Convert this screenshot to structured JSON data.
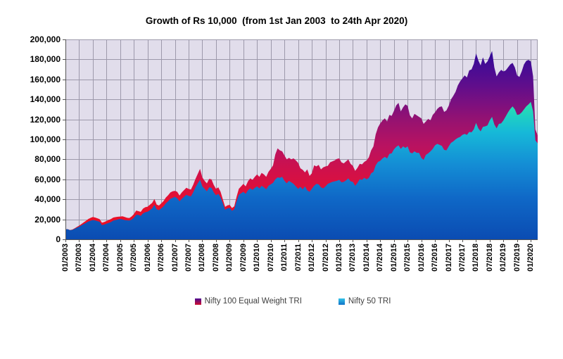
{
  "title": "Growth of Rs 10,000  (from 1st Jan 2003  to 24th Apr 2020)",
  "legend": {
    "items": [
      {
        "label": "Nifty 100 Equal Weight TRI",
        "swatch_top": "#4A0B94",
        "swatch_bottom": "#D00E2E"
      },
      {
        "label": "Nifty 50 TRI",
        "swatch_top": "#33C4E8",
        "swatch_bottom": "#1172C8"
      }
    ]
  },
  "chart_data": {
    "type": "area",
    "title": "Growth of Rs 10,000 (from 1st Jan 2003 to 24th Apr 2020)",
    "x_start": "01/2003",
    "x_end": "04/2020",
    "x_frequency": "monthly",
    "x_tick_labels": [
      "01/2003",
      "07/2003",
      "01/2004",
      "07/2004",
      "01/2005",
      "07/2005",
      "01/2006",
      "07/2006",
      "01/2007",
      "07/2007",
      "01/2008",
      "07/2008",
      "01/2009",
      "07/2009",
      "01/2010",
      "07/2010",
      "01/2011",
      "07/2011",
      "01/2012",
      "07/2012",
      "01/2013",
      "07/2013",
      "01/2014",
      "07/2014",
      "01/2015",
      "07/2015",
      "01/2016",
      "07/2016",
      "01/2017",
      "07/2017",
      "01/2018",
      "07/2018",
      "01/2019",
      "07/2019",
      "01/2020"
    ],
    "x_tick_every_months": 6,
    "ylim": [
      0,
      200000
    ],
    "y_step": 20000,
    "y_tick_labels": [
      "0",
      "20,000",
      "40,000",
      "60,000",
      "80,000",
      "100,000",
      "120,000",
      "140,000",
      "160,000",
      "180,000",
      "200,000"
    ],
    "plot_bg": "#E1DDEB",
    "grid_color": "#9D99AB",
    "axis_color": "#555555",
    "grid": true,
    "legend_position": "bottom",
    "series": [
      {
        "name": "Nifty 100 Equal Weight TRI",
        "gradient": [
          {
            "offset": 0.0,
            "color": "#EF0F1C"
          },
          {
            "offset": 0.2,
            "color": "#E61031"
          },
          {
            "offset": 0.35,
            "color": "#D21048"
          },
          {
            "offset": 0.5,
            "color": "#B81261"
          },
          {
            "offset": 0.62,
            "color": "#99126F"
          },
          {
            "offset": 0.72,
            "color": "#7C107F"
          },
          {
            "offset": 0.82,
            "color": "#5F0E8C"
          },
          {
            "offset": 0.92,
            "color": "#450B94"
          },
          {
            "offset": 1.0,
            "color": "#2F0798"
          }
        ],
        "values": [
          10000,
          10150,
          9300,
          9800,
          11000,
          12400,
          13700,
          15300,
          17000,
          18600,
          20300,
          21500,
          22400,
          21800,
          21000,
          20200,
          16600,
          17300,
          18400,
          19400,
          20400,
          21800,
          22300,
          22600,
          22800,
          23100,
          22400,
          21600,
          21300,
          22900,
          25300,
          28800,
          28200,
          27500,
          30700,
          32100,
          32700,
          34600,
          36400,
          40300,
          34800,
          33800,
          36000,
          38300,
          41800,
          44100,
          46900,
          48100,
          48500,
          47500,
          43800,
          46900,
          49300,
          51600,
          50400,
          49800,
          54600,
          60500,
          65500,
          70500,
          62000,
          58500,
          56000,
          60500,
          60000,
          54500,
          50500,
          52000,
          47500,
          40000,
          32500,
          34000,
          34500,
          31300,
          33000,
          42500,
          50500,
          53000,
          55500,
          53000,
          58000,
          61000,
          59500,
          62500,
          65000,
          62500,
          66500,
          65000,
          62500,
          67500,
          70500,
          74000,
          85000,
          91000,
          89000,
          88000,
          84000,
          80000,
          81500,
          80000,
          81000,
          79000,
          76500,
          71000,
          69500,
          67000,
          70000,
          63500,
          66000,
          74000,
          73000,
          74500,
          70000,
          72000,
          73000,
          73500,
          77000,
          78000,
          79000,
          80500,
          81000,
          77000,
          76000,
          78000,
          80000,
          75500,
          73500,
          68500,
          71500,
          75500,
          75000,
          77500,
          79000,
          82000,
          89000,
          93000,
          105000,
          112000,
          116000,
          119000,
          121000,
          118000,
          124500,
          123500,
          128500,
          134000,
          136500,
          128000,
          132000,
          135000,
          133500,
          124000,
          121000,
          125500,
          124000,
          122500,
          121000,
          115500,
          118000,
          120500,
          119000,
          124500,
          127000,
          130500,
          132500,
          133000,
          127500,
          129000,
          133500,
          140000,
          143500,
          147500,
          154000,
          158000,
          161000,
          164000,
          162000,
          169000,
          170000,
          175500,
          186000,
          179000,
          174000,
          182000,
          175500,
          178000,
          183000,
          188500,
          172000,
          163000,
          167000,
          169500,
          168000,
          169000,
          172000,
          175000,
          176500,
          172000,
          164000,
          162500,
          168000,
          175000,
          178500,
          179500,
          178000,
          163000,
          110000,
          104000
        ]
      },
      {
        "name": "Nifty 50 TRI",
        "gradient": [
          {
            "offset": 0.0,
            "color": "#0B4CB2"
          },
          {
            "offset": 0.3,
            "color": "#0F68C7"
          },
          {
            "offset": 0.55,
            "color": "#148ED5"
          },
          {
            "offset": 0.78,
            "color": "#16B9D8"
          },
          {
            "offset": 0.9,
            "color": "#1FD0C2"
          },
          {
            "offset": 1.0,
            "color": "#2BE3AE"
          }
        ],
        "values": [
          10000,
          10100,
          9200,
          9500,
          10500,
          11700,
          12700,
          14000,
          15200,
          16500,
          17800,
          18600,
          19300,
          18900,
          18200,
          17500,
          14200,
          14800,
          15700,
          16500,
          17300,
          18800,
          19300,
          19900,
          20400,
          19900,
          19300,
          19000,
          18800,
          19600,
          21600,
          24500,
          24500,
          23400,
          26000,
          27100,
          27600,
          29100,
          31000,
          34500,
          30000,
          29200,
          31000,
          33000,
          36000,
          38000,
          40500,
          41500,
          42500,
          41000,
          38000,
          40500,
          42500,
          44500,
          43500,
          43000,
          47000,
          52000,
          56000,
          59500,
          53000,
          50500,
          48000,
          52000,
          51500,
          47000,
          44000,
          45500,
          42000,
          36000,
          29500,
          31000,
          31500,
          28500,
          30000,
          38000,
          44500,
          46000,
          47500,
          45500,
          49000,
          51000,
          49500,
          51500,
          53000,
          51000,
          53500,
          52000,
          50000,
          53500,
          55000,
          56500,
          60000,
          62000,
          61500,
          62500,
          58500,
          56000,
          58500,
          57000,
          55500,
          53000,
          50500,
          52500,
          50000,
          53000,
          49000,
          47500,
          50500,
          53500,
          55500,
          55000,
          52000,
          51000,
          53000,
          55500,
          56500,
          57500,
          58000,
          58500,
          59500,
          57000,
          57500,
          59000,
          61000,
          58000,
          57500,
          53500,
          56500,
          60000,
          59500,
          61500,
          60000,
          61500,
          66000,
          67500,
          74000,
          77500,
          78500,
          81000,
          82500,
          81000,
          85500,
          86000,
          90000,
          92500,
          94000,
          90500,
          93000,
          91500,
          93000,
          87000,
          86000,
          88000,
          86500,
          86500,
          81500,
          79500,
          84500,
          86000,
          88000,
          90500,
          94000,
          95500,
          94500,
          93500,
          89500,
          89000,
          93000,
          96500,
          98000,
          100000,
          101500,
          102500,
          104500,
          105500,
          104500,
          107500,
          107000,
          110000,
          116500,
          111000,
          108000,
          112500,
          113000,
          114000,
          119000,
          122500,
          115000,
          111000,
          115500,
          116000,
          119000,
          123000,
          127000,
          130500,
          133000,
          130000,
          124500,
          125000,
          127000,
          130000,
          133000,
          135000,
          137500,
          128000,
          99000,
          96000
        ]
      }
    ]
  }
}
